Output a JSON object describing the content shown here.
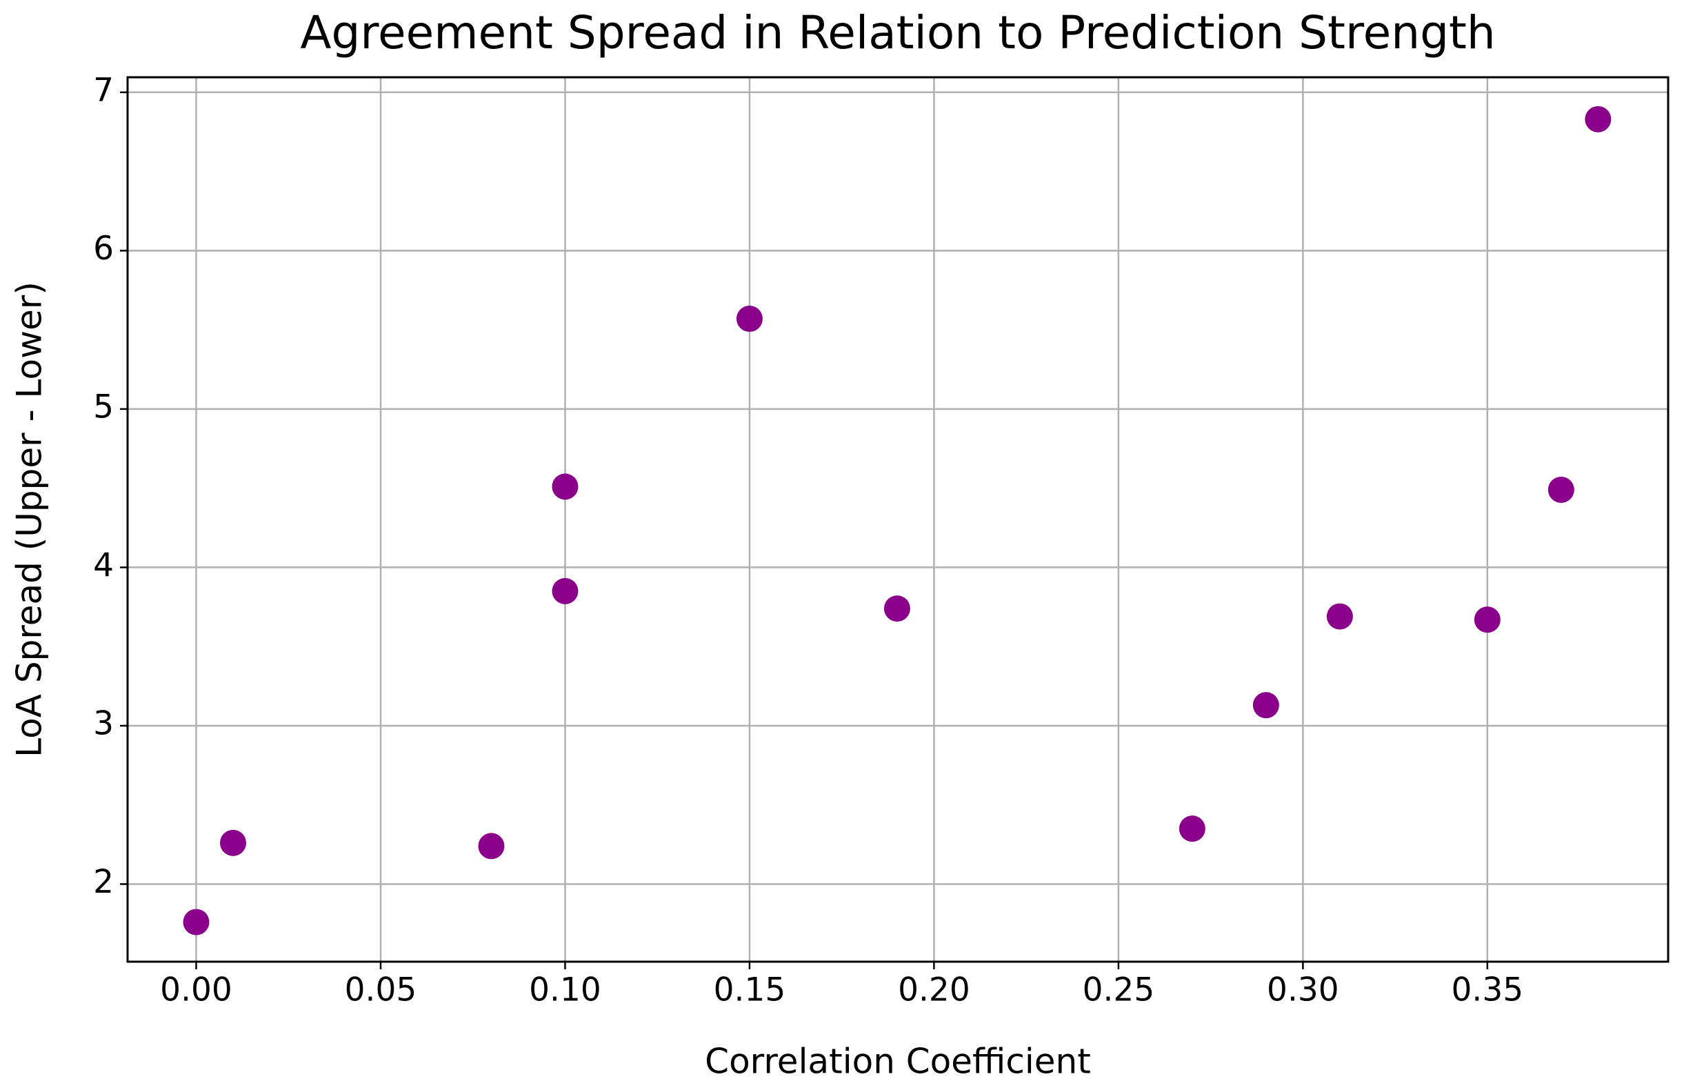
{
  "chart_data": {
    "type": "scatter",
    "title": "Agreement Spread in Relation to Prediction Strength",
    "x_label": "Correlation Coefficient",
    "y_label": "LoA Spread (Upper - Lower)",
    "color": "#8b008b",
    "grid": true,
    "x": [
      0.0,
      0.01,
      0.08,
      0.1,
      0.1,
      0.15,
      0.19,
      0.27,
      0.29,
      0.31,
      0.35,
      0.37,
      0.38
    ],
    "values": [
      1.76,
      2.26,
      2.24,
      4.51,
      3.85,
      5.57,
      3.74,
      2.35,
      3.13,
      3.69,
      3.67,
      4.49,
      6.83
    ],
    "xlim": [
      -0.0186,
      0.399
    ],
    "ylim": [
      1.51,
      7.095
    ],
    "xticks": [
      {
        "value": 0,
        "label": "0.00"
      },
      {
        "value": 0.05,
        "label": "0.05"
      },
      {
        "value": 0.1,
        "label": "0.10"
      },
      {
        "value": 0.15,
        "label": "0.15"
      },
      {
        "value": 0.2,
        "label": "0.20"
      },
      {
        "value": 0.25,
        "label": "0.25"
      },
      {
        "value": 0.3,
        "label": "0.30"
      },
      {
        "value": 0.35,
        "label": "0.35"
      }
    ],
    "yticks": [
      2,
      3,
      4,
      5,
      6,
      7
    ]
  }
}
